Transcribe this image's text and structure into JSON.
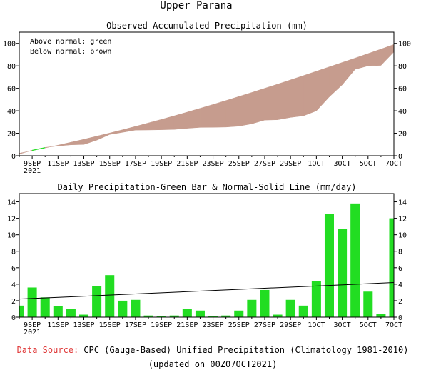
{
  "figure": {
    "title": "Upper_Parana",
    "footer_source_label": "Data Source:",
    "footer_source_text": "CPC (Gauge-Based) Unified Precipitation (Climatology 1981-2010)",
    "footer_updated": "(updated on 00Z07OCT2021)"
  },
  "chart_data": [
    {
      "type": "area",
      "title": "Observed Accumulated Precipitation (mm)",
      "annotations": [
        "Above normal: green",
        "Below normal: brown"
      ],
      "x": [
        "8SEP",
        "9SEP",
        "10SEP",
        "11SEP",
        "12SEP",
        "13SEP",
        "14SEP",
        "15SEP",
        "16SEP",
        "17SEP",
        "18SEP",
        "19SEP",
        "20SEP",
        "21SEP",
        "22SEP",
        "23SEP",
        "24SEP",
        "25SEP",
        "26SEP",
        "27SEP",
        "28SEP",
        "29SEP",
        "30SEP",
        "1OCT",
        "2OCT",
        "3OCT",
        "4OCT",
        "5OCT",
        "6OCT",
        "7OCT"
      ],
      "x_tick_labels": [
        "9SEP",
        "11SEP",
        "13SEP",
        "15SEP",
        "17SEP",
        "19SEP",
        "21SEP",
        "23SEP",
        "25SEP",
        "27SEP",
        "29SEP",
        "1OCT",
        "3OCT",
        "5OCT",
        "7OCT"
      ],
      "x_sublabel": "2021",
      "series": [
        {
          "role": "observed",
          "values": [
            1.4,
            5.0,
            7.4,
            8.7,
            9.7,
            10.0,
            13.8,
            18.9,
            20.8,
            22.8,
            22.9,
            23.1,
            23.4,
            24.4,
            25.2,
            25.3,
            25.5,
            26.3,
            28.4,
            31.7,
            32.0,
            34.1,
            35.5,
            39.9,
            52.4,
            63.1,
            76.9,
            80.0,
            80.4,
            92.4
          ]
        },
        {
          "role": "normal",
          "values": [
            2.2,
            4.5,
            6.9,
            9.4,
            12.0,
            14.6,
            17.4,
            20.2,
            23.1,
            26.1,
            29.2,
            32.3,
            35.5,
            38.8,
            42.2,
            45.6,
            49.1,
            52.7,
            56.3,
            60.0,
            63.7,
            67.5,
            71.3,
            75.2,
            79.1,
            83.0,
            86.9,
            90.9,
            94.9,
            99.0
          ]
        }
      ],
      "ylim": [
        0,
        110
      ],
      "yticks": [
        0,
        20,
        40,
        60,
        80,
        100
      ],
      "colors": {
        "below": "#c69c8e",
        "above": "#22dd22"
      }
    },
    {
      "type": "bar",
      "title": "Daily Precipitation-Green Bar & Normal-Solid Line (mm/day)",
      "x": [
        "8SEP",
        "9SEP",
        "10SEP",
        "11SEP",
        "12SEP",
        "13SEP",
        "14SEP",
        "15SEP",
        "16SEP",
        "17SEP",
        "18SEP",
        "19SEP",
        "20SEP",
        "21SEP",
        "22SEP",
        "23SEP",
        "24SEP",
        "25SEP",
        "26SEP",
        "27SEP",
        "28SEP",
        "29SEP",
        "30SEP",
        "1OCT",
        "2OCT",
        "3OCT",
        "4OCT",
        "5OCT",
        "6OCT",
        "7OCT"
      ],
      "x_tick_labels": [
        "9SEP",
        "11SEP",
        "13SEP",
        "15SEP",
        "17SEP",
        "19SEP",
        "21SEP",
        "23SEP",
        "25SEP",
        "27SEP",
        "29SEP",
        "1OCT",
        "3OCT",
        "5OCT",
        "7OCT"
      ],
      "x_sublabel": "2021",
      "series": [
        {
          "role": "daily",
          "values": [
            1.4,
            3.6,
            2.4,
            1.3,
            1.0,
            0.3,
            3.8,
            5.1,
            2.0,
            2.1,
            0.2,
            0.1,
            0.2,
            1.0,
            0.8,
            0.1,
            0.2,
            0.8,
            2.1,
            3.3,
            0.3,
            2.1,
            1.4,
            4.4,
            12.5,
            10.7,
            13.8,
            3.1,
            0.4,
            12.0
          ]
        },
        {
          "role": "normal",
          "start": 2.2,
          "end": 4.2
        }
      ],
      "ylim": [
        0,
        15
      ],
      "yticks": [
        0,
        2,
        4,
        6,
        8,
        10,
        12,
        14
      ],
      "colors": {
        "bar": "#22dd22",
        "line": "#000000"
      }
    }
  ]
}
